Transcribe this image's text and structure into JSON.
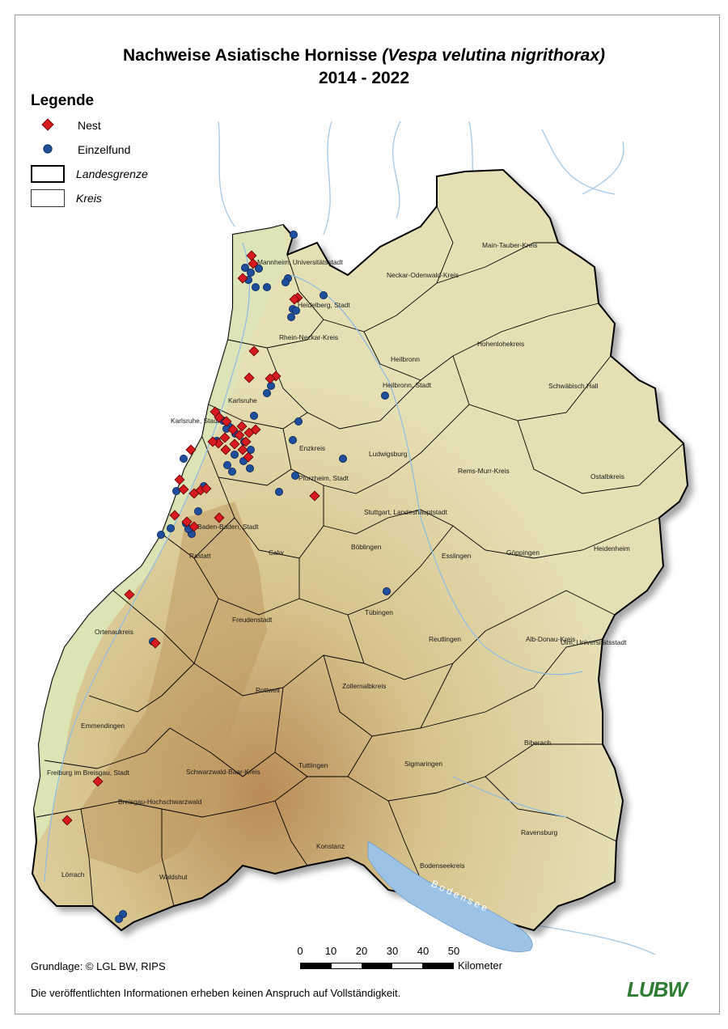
{
  "title": {
    "main": "Nachweise Asiatische Hornisse",
    "species": "(Vespa velutina nigrithorax)",
    "years": "2014 - 2022"
  },
  "legend": {
    "heading": "Legende",
    "items": [
      {
        "label": "Nest",
        "symbol": "red-diamond",
        "color": "#d71920"
      },
      {
        "label": "Einzelfund",
        "symbol": "blue-circle",
        "color": "#1f4e9c"
      },
      {
        "label": "Landesgrenze",
        "symbol": "thick-outline"
      },
      {
        "label": "Kreis",
        "symbol": "thin-outline"
      }
    ]
  },
  "places": [
    "Mannheim, Universitätsstadt",
    "Heidelberg, Stadt",
    "Rhein-Neckar-Kreis",
    "Main-Tauber-Kreis",
    "Neckar-Odenwald-Kreis",
    "Heilbronn",
    "Heilbronn, Stadt",
    "Hohenlohekreis",
    "Schwäbisch Hall",
    "Karlsruhe",
    "Karlsruhe, Stadt",
    "Enzkreis",
    "Ludwigsburg",
    "Rems-Murr-Kreis",
    "Ostalbkreis",
    "Pforzheim, Stadt",
    "Stuttgart, Landeshauptstadt",
    "Baden-Baden, Stadt",
    "Rastatt",
    "Calw",
    "Böblingen",
    "Esslingen",
    "Göppingen",
    "Heidenheim",
    "Ortenaukreis",
    "Freudenstadt",
    "Tübingen",
    "Reutlingen",
    "Alb-Donau-Kreis",
    "Ulm, Universitätsstadt",
    "Rottweil",
    "Zollernalbkreis",
    "Emmendingen",
    "Biberach",
    "Freiburg im Breisgau, Stadt",
    "Schwarzwald-Baar-Kreis",
    "Tuttlingen",
    "Sigmaringen",
    "Breisgau-Hochschwarzwald",
    "Konstanz",
    "Bodenseekreis",
    "Ravensburg",
    "Lörrach",
    "Waldshut"
  ],
  "lake_label": "Bodensee",
  "scale": {
    "ticks": [
      "0",
      "10",
      "20",
      "30",
      "40",
      "50"
    ],
    "unit": "Kilometer"
  },
  "credit": "Grundlage: © LGL BW, RIPS",
  "disclaimer": "Die veröffentlichten Informationen erheben keinen Anspruch auf Vollständigkeit.",
  "logo": "LUBW",
  "colors": {
    "nest": "#d71920",
    "einzelfund": "#1f4e9c",
    "terrain": "#e4dcae",
    "rhine_plain": "#dbe6b8",
    "water": "#9cc3e6"
  }
}
